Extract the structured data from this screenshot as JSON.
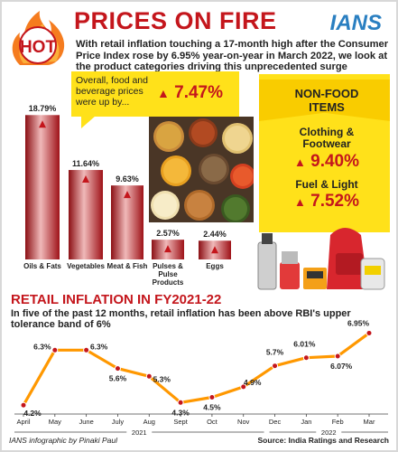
{
  "header": {
    "hot_badge": "HOT",
    "title": "PRICES ON FIRE",
    "logo": "IANS",
    "intro": "With retail inflation touching a 17-month high after the Consumer Price Index rose by 6.95% year-on-year in March 2022, we look at the product categories driving this unprecedented surge"
  },
  "food_callout": {
    "text": "Overall, food and beverage prices were up by...",
    "value": "7.47%"
  },
  "non_food": {
    "title": "NON-FOOD ITEMS",
    "items": [
      {
        "label": "Clothing & Footwear",
        "value": "9.40%"
      },
      {
        "label": "Fuel & Light",
        "value": "7.52%"
      }
    ]
  },
  "colors": {
    "accent_red": "#c4161c",
    "yellow": "#ffe11a",
    "line_orange": "#ff9800"
  },
  "chart_data": [
    {
      "type": "bar",
      "categories": [
        "Oils & Fats",
        "Vegetables",
        "Meat & Fish",
        "Pulses & Pulse Products",
        "Eggs"
      ],
      "values": [
        18.79,
        11.64,
        9.63,
        2.57,
        2.44
      ],
      "value_labels": [
        "18.79%",
        "11.64%",
        "9.63%",
        "2.57%",
        "2.44%"
      ],
      "title": "",
      "ylim": [
        0,
        20
      ]
    },
    {
      "type": "line",
      "title": "RETAIL INFLATION IN FY2021-22",
      "subtitle": "In five of the past 12 months, retail inflation has been above RBI's upper tolerance band of 6%",
      "categories": [
        "April",
        "May",
        "June",
        "July",
        "Aug",
        "Sept",
        "Oct",
        "Nov",
        "Dec",
        "Jan",
        "Feb",
        "Mar"
      ],
      "values": [
        4.2,
        6.3,
        6.3,
        5.6,
        5.3,
        4.3,
        4.5,
        4.9,
        5.7,
        6.01,
        6.07,
        6.95
      ],
      "value_labels": [
        "4.2%",
        "6.3%",
        "6.3%",
        "5.6%",
        "5.3%",
        "4.3%",
        "4.5%",
        "4.9%",
        "5.7%",
        "6.01%",
        "6.07%",
        "6.95%"
      ],
      "year_labels": [
        "2021",
        "2022"
      ],
      "ylim": [
        4.0,
        7.0
      ],
      "grid": false
    }
  ],
  "footer": {
    "credit": "IANS infographic by Pinaki Paul",
    "source": "Source: India Ratings and Research"
  }
}
